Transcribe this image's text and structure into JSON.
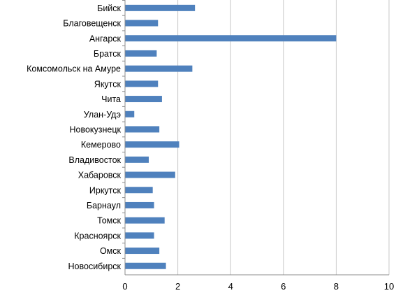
{
  "chart_data": {
    "type": "bar",
    "orientation": "horizontal",
    "categories": [
      "Бийск",
      "Благовещенск",
      "Ангарск",
      "Братск",
      "Комсомольск на Амуре",
      "Якутск",
      "Чита",
      "Улан-Удэ",
      "Новокузнецк",
      "Кемерово",
      "Владивосток",
      "Хабаровск",
      "Иркутск",
      "Барнаул",
      "Томск",
      "Красноярск",
      "Омск",
      "Новосибирск"
    ],
    "values": [
      2.65,
      1.25,
      8.0,
      1.2,
      2.55,
      1.25,
      1.4,
      0.35,
      1.3,
      2.05,
      0.9,
      1.9,
      1.05,
      1.1,
      1.5,
      1.1,
      1.3,
      1.55
    ],
    "xlim": [
      0,
      10
    ],
    "xticks": [
      "0",
      "2",
      "4",
      "6",
      "8",
      "10"
    ],
    "title": "",
    "xlabel": "",
    "ylabel": "",
    "grid": "vertical",
    "bar_color": "#4f81bd"
  }
}
